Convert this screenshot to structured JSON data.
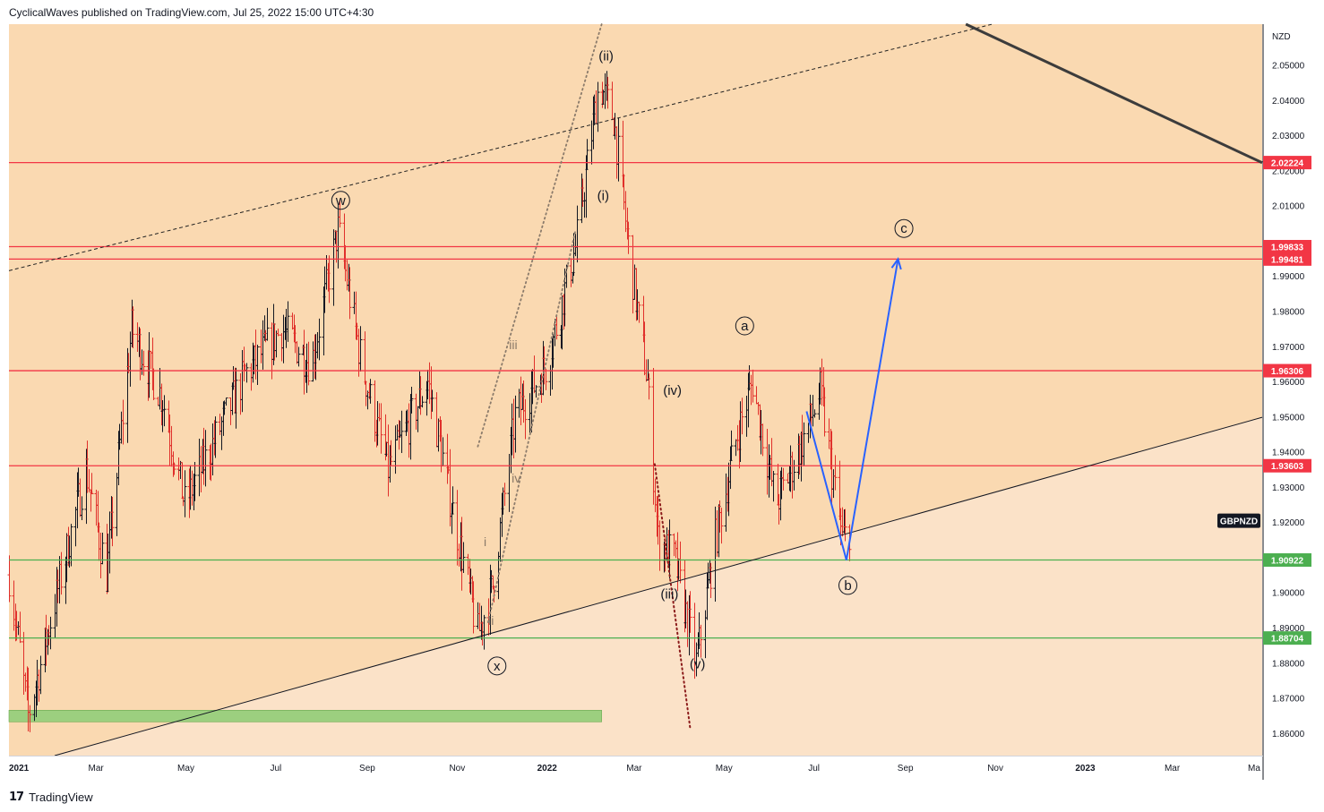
{
  "header": {
    "publisher_line": "CyclicalWaves published on TradingView.com, Jul 25, 2022 15:00 UTC+4:30"
  },
  "footer": {
    "brand": "TradingView",
    "logo_glyph": "17"
  },
  "colors": {
    "bg_main": "#fad9b1",
    "bg_lower": "#fbe2c8",
    "up": "#131722",
    "down": "#e0302b",
    "resistance": "#f23645",
    "support": "#4caf50",
    "projection": "#2962ff",
    "trend": "#131722"
  },
  "chart_data": {
    "type": "ohlc",
    "symbol": "GBPNZD",
    "currency": "NZD",
    "xlim": [
      "2021-01-01",
      "2023-05-01"
    ],
    "ylim": [
      1.8536,
      2.0616
    ],
    "x_ticks": [
      {
        "date": "2021-01-01",
        "label": "2021",
        "bold": true
      },
      {
        "date": "2021-03-01",
        "label": "Mar"
      },
      {
        "date": "2021-05-01",
        "label": "May"
      },
      {
        "date": "2021-07-01",
        "label": "Jul"
      },
      {
        "date": "2021-09-01",
        "label": "Sep"
      },
      {
        "date": "2021-11-01",
        "label": "Nov"
      },
      {
        "date": "2022-01-01",
        "label": "2022",
        "bold": true
      },
      {
        "date": "2022-03-01",
        "label": "Mar"
      },
      {
        "date": "2022-05-01",
        "label": "May"
      },
      {
        "date": "2022-07-01",
        "label": "Jul"
      },
      {
        "date": "2022-09-01",
        "label": "Sep"
      },
      {
        "date": "2022-11-01",
        "label": "Nov"
      },
      {
        "date": "2023-01-01",
        "label": "2023",
        "bold": true
      },
      {
        "date": "2023-03-01",
        "label": "Mar"
      },
      {
        "date": "2023-05-01",
        "label": "Ma"
      }
    ],
    "y_ticks": [
      {
        "value": 2.05,
        "label": "2.05000"
      },
      {
        "value": 2.04,
        "label": "2.04000"
      },
      {
        "value": 2.03,
        "label": "2.03000"
      },
      {
        "value": 2.02,
        "label": "2.02000"
      },
      {
        "value": 2.01,
        "label": "2.01000"
      },
      {
        "value": 1.99,
        "label": "1.99000"
      },
      {
        "value": 1.98,
        "label": "1.98000"
      },
      {
        "value": 1.97,
        "label": "1.97000"
      },
      {
        "value": 1.96,
        "label": "1.96000"
      },
      {
        "value": 1.95,
        "label": "1.95000"
      },
      {
        "value": 1.94,
        "label": "1.94000"
      },
      {
        "value": 1.93,
        "label": "1.93000"
      },
      {
        "value": 1.92,
        "label": "1.92000"
      },
      {
        "value": 1.9,
        "label": "1.90000"
      },
      {
        "value": 1.89,
        "label": "1.89000"
      },
      {
        "value": 1.88,
        "label": "1.88000"
      },
      {
        "value": 1.87,
        "label": "1.87000"
      },
      {
        "value": 1.86,
        "label": "1.86000"
      }
    ],
    "horizontal_levels": [
      {
        "price": 2.02224,
        "label": "2.02224",
        "kind": "resistance"
      },
      {
        "price": 1.99833,
        "label": "1.99833",
        "kind": "resistance"
      },
      {
        "price": 1.99481,
        "label": "1.99481",
        "kind": "resistance"
      },
      {
        "price": 1.96306,
        "label": "1.96306",
        "kind": "resistance"
      },
      {
        "price": 1.93603,
        "label": "1.93603",
        "kind": "resistance"
      },
      {
        "price": 1.90922,
        "label": "1.90922",
        "kind": "support"
      },
      {
        "price": 1.88704,
        "label": "1.88704",
        "kind": "support"
      }
    ],
    "price_tag": {
      "label": "GBPNZD",
      "price": 1.9204
    },
    "support_zone": {
      "from": "2021-01-01",
      "to": "2022-02-07",
      "price_low": 1.8632,
      "price_high": 1.8665
    },
    "trendlines": [
      {
        "style": "solid-thin",
        "points": [
          {
            "date": "2021-02-01",
            "price": 1.8536
          },
          {
            "date": "2023-05-01",
            "price": 1.9498
          }
        ]
      },
      {
        "style": "dashed",
        "points": [
          {
            "date": "2021-01-01",
            "price": 1.9915
          },
          {
            "date": "2022-10-30",
            "price": 2.0616
          }
        ]
      },
      {
        "style": "solid-thick",
        "points": [
          {
            "date": "2022-10-12",
            "price": 2.0616
          },
          {
            "date": "2023-05-01",
            "price": 2.0222
          }
        ]
      }
    ],
    "channel_lines": [
      {
        "style": "dotted",
        "points": [
          {
            "date": "2021-11-15",
            "price": 1.9415
          },
          {
            "date": "2022-02-07",
            "price": 2.0616
          }
        ]
      },
      {
        "style": "dotted",
        "points": [
          {
            "date": "2021-11-22",
            "price": 1.8915
          },
          {
            "date": "2022-01-20",
            "price": 2.0025
          }
        ]
      },
      {
        "style": "dotted-dark",
        "points": [
          {
            "date": "2022-03-15",
            "price": 1.9365
          },
          {
            "date": "2022-04-08",
            "price": 1.8615
          }
        ]
      }
    ],
    "projection": [
      {
        "date": "2022-06-26",
        "price": 1.9515
      },
      {
        "date": "2022-07-23",
        "price": 1.9092
      },
      {
        "date": "2022-08-27",
        "price": 1.9948
      }
    ],
    "wave_labels": [
      {
        "text": "w",
        "date": "2021-08-14",
        "price": 2.0115,
        "circled": true
      },
      {
        "text": "x",
        "date": "2021-11-28",
        "price": 1.8791,
        "circled": true
      },
      {
        "text": "(ii)",
        "date": "2022-02-10",
        "price": 2.0525
      },
      {
        "text": "(i)",
        "date": "2022-02-08",
        "price": 2.0128
      },
      {
        "text": "iii",
        "date": "2021-12-09",
        "price": 1.9705,
        "muted": true
      },
      {
        "text": "iv",
        "date": "2021-12-11",
        "price": 1.9325,
        "muted": true
      },
      {
        "text": "i",
        "date": "2021-11-20",
        "price": 1.9145,
        "muted": true
      },
      {
        "text": "ii",
        "date": "2021-11-24",
        "price": 1.892,
        "muted": true
      },
      {
        "text": "(iv)",
        "date": "2022-03-27",
        "price": 1.9575
      },
      {
        "text": "(iii)",
        "date": "2022-03-25",
        "price": 1.8995
      },
      {
        "text": "(v)",
        "date": "2022-04-13",
        "price": 1.8797
      },
      {
        "text": "a",
        "date": "2022-05-15",
        "price": 1.9758,
        "circled": true
      },
      {
        "text": "b",
        "date": "2022-07-24",
        "price": 1.902,
        "circled": true
      },
      {
        "text": "c",
        "date": "2022-08-31",
        "price": 2.0035,
        "circled": true
      }
    ],
    "ohlc_key_points": [
      {
        "date": "2021-01-01",
        "price": 1.905
      },
      {
        "date": "2021-01-14",
        "price": 1.865
      },
      {
        "date": "2021-02-22",
        "price": 1.935
      },
      {
        "date": "2021-03-08",
        "price": 1.905
      },
      {
        "date": "2021-03-25",
        "price": 1.975
      },
      {
        "date": "2021-04-15",
        "price": 1.955
      },
      {
        "date": "2021-04-30",
        "price": 1.925
      },
      {
        "date": "2021-06-10",
        "price": 1.962
      },
      {
        "date": "2021-07-05",
        "price": 1.975
      },
      {
        "date": "2021-07-25",
        "price": 1.965
      },
      {
        "date": "2021-08-12",
        "price": 2.003
      },
      {
        "date": "2021-08-28",
        "price": 1.965
      },
      {
        "date": "2021-09-15",
        "price": 1.935
      },
      {
        "date": "2021-10-12",
        "price": 1.96
      },
      {
        "date": "2021-10-28",
        "price": 1.925
      },
      {
        "date": "2021-11-15",
        "price": 1.888
      },
      {
        "date": "2021-11-25",
        "price": 1.902
      },
      {
        "date": "2021-12-10",
        "price": 1.95
      },
      {
        "date": "2022-01-01",
        "price": 1.965
      },
      {
        "date": "2022-01-20",
        "price": 1.998
      },
      {
        "date": "2022-02-05",
        "price": 2.045
      },
      {
        "date": "2022-02-15",
        "price": 2.035
      },
      {
        "date": "2022-02-26",
        "price": 1.995
      },
      {
        "date": "2022-03-10",
        "price": 1.96
      },
      {
        "date": "2022-03-17",
        "price": 1.915
      },
      {
        "date": "2022-03-28",
        "price": 1.91
      },
      {
        "date": "2022-04-12",
        "price": 1.88
      },
      {
        "date": "2022-04-25",
        "price": 1.915
      },
      {
        "date": "2022-05-10",
        "price": 1.945
      },
      {
        "date": "2022-05-20",
        "price": 1.96
      },
      {
        "date": "2022-06-05",
        "price": 1.925
      },
      {
        "date": "2022-06-25",
        "price": 1.945
      },
      {
        "date": "2022-07-05",
        "price": 1.957
      },
      {
        "date": "2022-07-20",
        "price": 1.915
      },
      {
        "date": "2022-07-25",
        "price": 1.918
      }
    ]
  }
}
